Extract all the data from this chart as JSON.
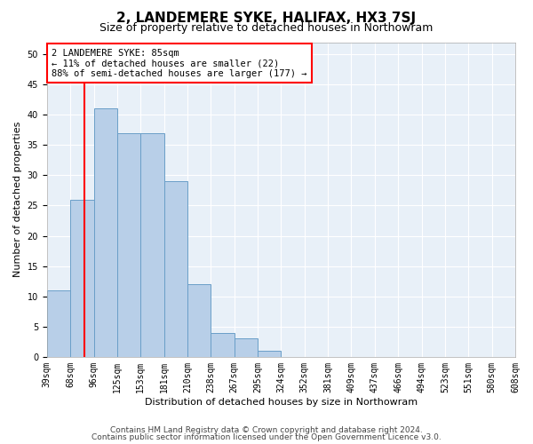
{
  "title": "2, LANDEMERE SYKE, HALIFAX, HX3 7SJ",
  "subtitle": "Size of property relative to detached houses in Northowram",
  "xlabel": "Distribution of detached houses by size in Northowram",
  "ylabel": "Number of detached properties",
  "bar_values": [
    11,
    26,
    41,
    37,
    37,
    29,
    12,
    4,
    3,
    1,
    0,
    0,
    0,
    0,
    0,
    0,
    0,
    0,
    0,
    0
  ],
  "bin_labels": [
    "39sqm",
    "68sqm",
    "96sqm",
    "125sqm",
    "153sqm",
    "181sqm",
    "210sqm",
    "238sqm",
    "267sqm",
    "295sqm",
    "324sqm",
    "352sqm",
    "381sqm",
    "409sqm",
    "437sqm",
    "466sqm",
    "494sqm",
    "523sqm",
    "551sqm",
    "580sqm",
    "608sqm"
  ],
  "bar_color": "#b8cfe8",
  "bar_edge_color": "#6a9fc8",
  "vline_color": "red",
  "annotation_text": "2 LANDEMERE SYKE: 85sqm\n← 11% of detached houses are smaller (22)\n88% of semi-detached houses are larger (177) →",
  "annotation_box_color": "white",
  "annotation_box_edge_color": "red",
  "ylim": [
    0,
    52
  ],
  "yticks": [
    0,
    5,
    10,
    15,
    20,
    25,
    30,
    35,
    40,
    45,
    50
  ],
  "footer_line1": "Contains HM Land Registry data © Crown copyright and database right 2024.",
  "footer_line2": "Contains public sector information licensed under the Open Government Licence v3.0.",
  "plot_background": "#e8f0f8",
  "grid_color": "white",
  "title_fontsize": 11,
  "subtitle_fontsize": 9,
  "xlabel_fontsize": 8,
  "ylabel_fontsize": 8,
  "tick_fontsize": 7,
  "annotation_fontsize": 7.5,
  "footer_fontsize": 6.5
}
